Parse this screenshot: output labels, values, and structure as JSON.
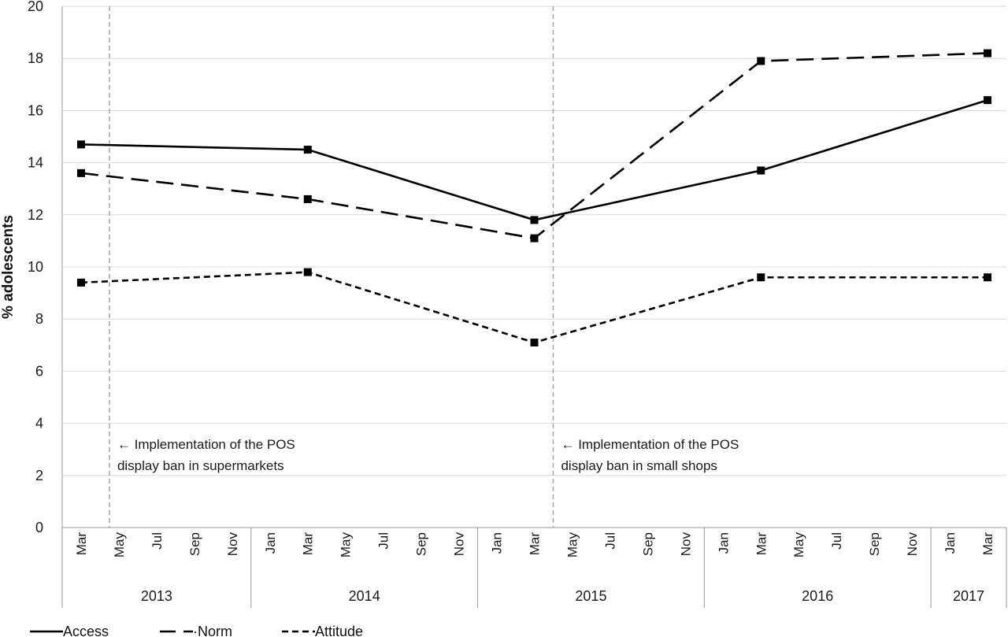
{
  "chart_data": {
    "type": "line",
    "ylabel": "% adolescents",
    "ylim": [
      0,
      20
    ],
    "yticks": [
      0,
      2,
      4,
      6,
      8,
      10,
      12,
      14,
      16,
      18,
      20
    ],
    "grid": "horizontal",
    "x_months": [
      "Mar",
      "May",
      "Jul",
      "Sep",
      "Nov",
      "Jan",
      "Mar",
      "May",
      "Jul",
      "Sep",
      "Nov",
      "Jan",
      "Mar",
      "May",
      "Jul",
      "Sep",
      "Nov",
      "Jan",
      "Mar",
      "May",
      "Jul",
      "Sep",
      "Nov",
      "Jan",
      "Mar"
    ],
    "years": [
      {
        "label": "2013",
        "start": 0,
        "end": 4
      },
      {
        "label": "2014",
        "start": 5,
        "end": 10
      },
      {
        "label": "2015",
        "start": 11,
        "end": 16
      },
      {
        "label": "2016",
        "start": 17,
        "end": 22
      },
      {
        "label": "2017",
        "start": 23,
        "end": 24
      }
    ],
    "series": [
      {
        "name": "Access",
        "style": "solid",
        "x": [
          0,
          6,
          12,
          18,
          24
        ],
        "values": [
          14.7,
          14.5,
          11.8,
          13.7,
          16.4
        ]
      },
      {
        "name": "Norm",
        "style": "longdash",
        "x": [
          0,
          6,
          12,
          18,
          24
        ],
        "values": [
          13.6,
          12.6,
          11.1,
          17.9,
          18.2
        ]
      },
      {
        "name": "Attitude",
        "style": "shortdash",
        "x": [
          0,
          6,
          12,
          18,
          24
        ],
        "values": [
          9.4,
          9.8,
          7.1,
          9.6,
          9.6
        ]
      }
    ],
    "annotations": [
      {
        "x": 0.75,
        "lines": [
          "← Implementation of the POS",
          "display ban in supermarkets"
        ]
      },
      {
        "x": 12.5,
        "lines": [
          "← Implementation of the POS",
          "display ban in small shops"
        ]
      }
    ],
    "legend_position": "bottom-left",
    "legend_labels": [
      "Access",
      "·Norm",
      "Attitude"
    ]
  }
}
